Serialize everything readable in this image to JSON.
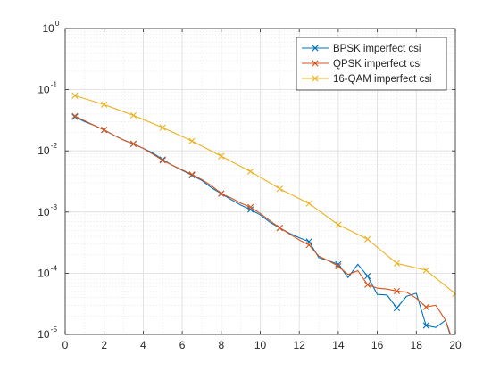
{
  "figure": {
    "background": "#ffffff"
  },
  "chart_data": {
    "type": "line",
    "title": "",
    "xlabel": "",
    "ylabel": "",
    "xlim": [
      0,
      20
    ],
    "ylim": [
      1e-05,
      1
    ],
    "y_scale": "log",
    "grid": true,
    "minor_grid": true,
    "legend_location": "top-right",
    "x_ticks": [
      0,
      2,
      4,
      6,
      8,
      10,
      12,
      14,
      16,
      18,
      20
    ],
    "x_tick_labels": [
      "0",
      "2",
      "4",
      "6",
      "8",
      "10",
      "12",
      "14",
      "16",
      "18",
      "20"
    ],
    "y_ticks": [
      1e-05,
      0.0001,
      0.001,
      0.01,
      0.1,
      1
    ],
    "y_tick_labels": [
      {
        "base": "10",
        "exp": "-5"
      },
      {
        "base": "10",
        "exp": "-4"
      },
      {
        "base": "10",
        "exp": "-3"
      },
      {
        "base": "10",
        "exp": "-2"
      },
      {
        "base": "10",
        "exp": "-1"
      },
      {
        "base": "10",
        "exp": "0"
      }
    ],
    "series": [
      {
        "name": "BPSK imperfect csi",
        "color": "#0072BD",
        "marker": "x",
        "x": [
          0.5,
          1,
          1.5,
          2,
          2.5,
          3,
          3.5,
          4,
          4.5,
          5,
          5.5,
          6,
          6.5,
          7,
          7.5,
          8,
          8.5,
          9,
          9.5,
          10,
          10.5,
          11,
          11.5,
          12,
          12.5,
          13,
          13.5,
          14,
          14.5,
          15,
          15.5,
          16,
          16.5,
          17,
          17.5,
          18,
          18.5,
          19,
          19.5,
          20
        ],
        "y": [
          0.036,
          0.03,
          0.026,
          0.022,
          0.018,
          0.015,
          0.013,
          0.011,
          0.0092,
          0.0072,
          0.0058,
          0.0048,
          0.004,
          0.0033,
          0.0025,
          0.002,
          0.0016,
          0.0013,
          0.0011,
          0.0009,
          0.00068,
          0.00055,
          0.00045,
          0.00038,
          0.00033,
          0.00018,
          0.00016,
          0.00014,
          8.5e-05,
          0.00014,
          9e-05,
          4.5e-05,
          4.4e-05,
          2.7e-05,
          4.2e-05,
          4.7e-05,
          1.4e-05,
          1.3e-05,
          1.7e-05,
          5.3e-06
        ]
      },
      {
        "name": "QPSK imperfect csi",
        "color": "#D95319",
        "marker": "x",
        "x": [
          0.5,
          1,
          1.5,
          2,
          2.5,
          3,
          3.5,
          4,
          4.5,
          5,
          5.5,
          6,
          6.5,
          7,
          7.5,
          8,
          8.5,
          9,
          9.5,
          10,
          10.5,
          11,
          11.5,
          12,
          12.5,
          13,
          13.5,
          14,
          14.5,
          15,
          15.5,
          16,
          16.5,
          17,
          17.5,
          18,
          18.5,
          19,
          19.5,
          20
        ],
        "y": [
          0.037,
          0.031,
          0.026,
          0.022,
          0.018,
          0.015,
          0.013,
          0.011,
          0.0088,
          0.007,
          0.0058,
          0.0049,
          0.0041,
          0.0034,
          0.0027,
          0.002,
          0.0017,
          0.0014,
          0.0012,
          0.00095,
          0.00072,
          0.00055,
          0.00044,
          0.00035,
          0.00029,
          0.00019,
          0.00016,
          0.00013,
          9.5e-05,
          0.00011,
          6.5e-05,
          5.7e-05,
          5.5e-05,
          5.1e-05,
          4.9e-05,
          3.9e-05,
          2.8e-05,
          3e-05,
          1.7e-05,
          6e-06
        ]
      },
      {
        "name": "16-QAM imperfect csi",
        "color": "#EDB120",
        "marker": "x",
        "x": [
          0.5,
          2,
          3.5,
          5,
          6.5,
          8,
          9.5,
          11,
          12.5,
          14,
          15.5,
          17,
          18.5,
          20
        ],
        "y": [
          0.08,
          0.057,
          0.038,
          0.024,
          0.0145,
          0.0082,
          0.0046,
          0.0024,
          0.00138,
          0.00062,
          0.00036,
          0.000145,
          0.000112,
          4.6e-05
        ]
      }
    ]
  }
}
